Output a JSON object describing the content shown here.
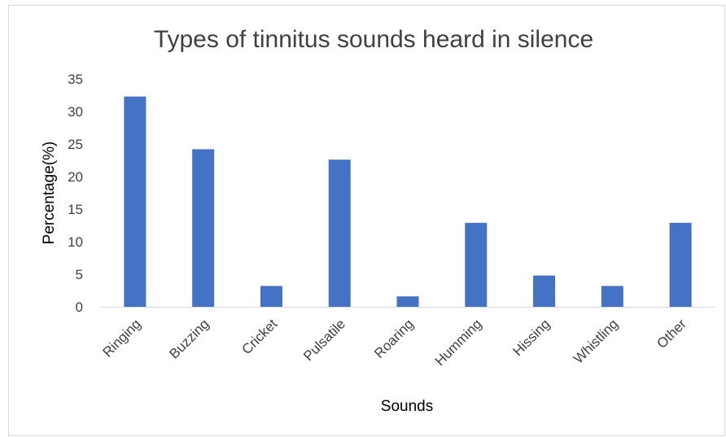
{
  "chart_data": {
    "type": "bar",
    "title": "Types of tinnitus sounds heard in silence",
    "xlabel": "Sounds",
    "ylabel": "Percentage(%)",
    "categories": [
      "Ringing",
      "Buzzing",
      "Cricket",
      "Pulsatile",
      "Roaring",
      "Humming",
      "Hissing",
      "Whistling",
      "Other"
    ],
    "values": [
      32.3,
      24.2,
      3.2,
      22.6,
      1.6,
      12.9,
      4.8,
      3.2,
      12.9
    ],
    "ylim": [
      0,
      35
    ],
    "yticks": [
      0,
      5,
      10,
      15,
      20,
      25,
      30,
      35
    ],
    "grid": false,
    "legend": "none",
    "bar_color": "#4472C4",
    "axis_color": "#d9d9d9"
  }
}
